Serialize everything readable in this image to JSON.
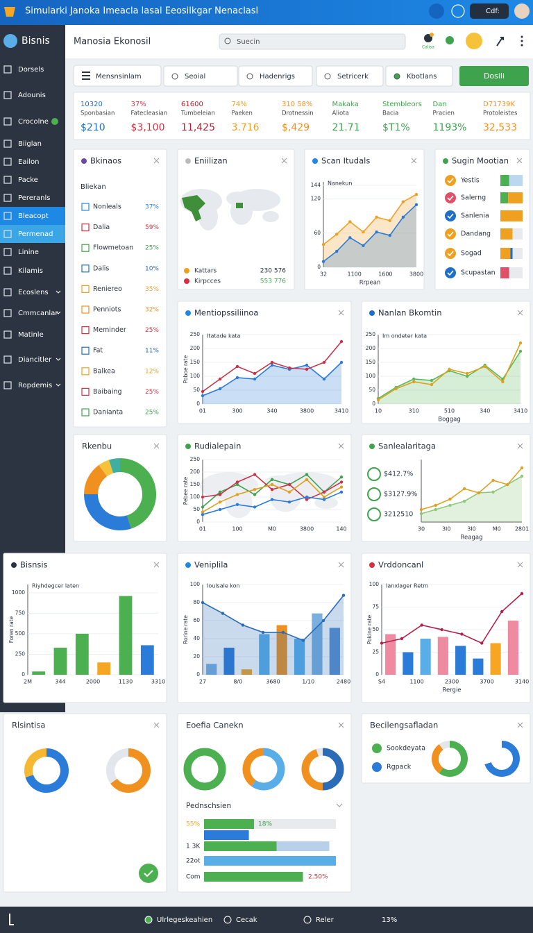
{
  "topbar": {
    "title": "Simularki Janoka Imeacla lasal Eeosilkgar Nenaclasl",
    "user": "Cdf:"
  },
  "sidebar": {
    "brand": "Bisnis",
    "items": [
      {
        "label": "Dorsels"
      },
      {
        "label": "Adounis"
      },
      {
        "label": "Crocolne",
        "badge": true
      },
      {
        "label": "Biiglan"
      },
      {
        "label": "Eailon"
      },
      {
        "label": "Packe"
      },
      {
        "label": "Pereranls"
      },
      {
        "label": "Bleacopt",
        "active": "#1e88e5"
      },
      {
        "label": "Permenad",
        "active": "#3aa6e6"
      },
      {
        "label": "Linine"
      },
      {
        "label": "Kilamis"
      },
      {
        "label": "Ecoslens",
        "expandable": true
      },
      {
        "label": "Cmmcanlar",
        "expandable": true
      },
      {
        "label": "Matinle"
      },
      {
        "label": "Diancitler",
        "expandable": true
      },
      {
        "label": "Ropdemis",
        "expandable": true
      }
    ]
  },
  "header": {
    "title": "Manosia Ekonosil",
    "search": "Suecin",
    "badge": "Calisa"
  },
  "toolbar": {
    "menu": "Mensnsinlam",
    "tabs": [
      "Seoial",
      "Hadenrigs",
      "Setricerk",
      "Kbotlans"
    ],
    "action": "Dosili"
  },
  "stats": [
    {
      "top": "10320",
      "label": "Sponbasian",
      "value": "$210",
      "color": "#1e6fc8"
    },
    {
      "top": "37%",
      "label": "Fatecleasian",
      "value": "$3,100",
      "color": "#d62f3f"
    },
    {
      "top": "61600",
      "label": "Tumbeleian",
      "value": "11,425",
      "color": "#b3202e"
    },
    {
      "top": "74%",
      "label": "Paeken",
      "value": "3.716",
      "color": "#f0a020"
    },
    {
      "top": "310 58%",
      "label": "Drotnessin",
      "value": "$,429",
      "color": "#f0901e"
    },
    {
      "top": "Makaka",
      "label": "Aliota",
      "value": "21.71",
      "color": "#3fa34d"
    },
    {
      "top": "Stembleors",
      "label": "Bacia",
      "value": "$T1%",
      "color": "#3fa34d"
    },
    {
      "top": "Dan",
      "label": "Pracien",
      "value": "1193%",
      "color": "#3fa34d"
    },
    {
      "top": "D71739K",
      "label": "Protoleistes",
      "value": "32,533",
      "color": "#f0901e"
    }
  ],
  "list_panel": {
    "title": "Bkinaos",
    "subtitle": "Bliekan",
    "items": [
      {
        "name": "Nonleals",
        "value": "37%",
        "color": "#1e88e5"
      },
      {
        "name": "Dalia",
        "value": "59%",
        "color": "#d62f3f"
      },
      {
        "name": "Flowmetoan",
        "value": "25%",
        "color": "#3fa34d"
      },
      {
        "name": "Dalis",
        "value": "10%",
        "color": "#1e6fc8"
      },
      {
        "name": "Reniereo",
        "value": "35%",
        "color": "#f0a020"
      },
      {
        "name": "Penniots",
        "value": "32%",
        "color": "#f0901e"
      },
      {
        "name": "Meminder",
        "value": "25%",
        "color": "#d62f3f"
      },
      {
        "name": "Fat",
        "value": "11%",
        "color": "#1e6fc8"
      },
      {
        "name": "Balkea",
        "value": "12%",
        "color": "#f0a020"
      },
      {
        "name": "Baibaing",
        "value": "25%",
        "color": "#d62f3f"
      },
      {
        "name": "Danianta",
        "value": "25%",
        "color": "#3fa34d"
      }
    ]
  },
  "map_panel": {
    "title": "Eniilizan",
    "legend": [
      {
        "name": "Kattars",
        "value": "230 576",
        "color": "#f0a020"
      },
      {
        "name": "Kirpcces",
        "value": "553 776",
        "color": "#d62f3f"
      }
    ]
  },
  "status_panel": {
    "title": "Sugin Mootian",
    "items": [
      {
        "name": "Yestis",
        "color": "#f0a020",
        "values": [
          40,
          60
        ],
        "colors": [
          "#4caf50",
          "#bcd8f0"
        ]
      },
      {
        "name": "Salerng",
        "color": "#e05068",
        "values": [
          35,
          65
        ],
        "colors": [
          "#4caf50",
          "#f0a020"
        ]
      },
      {
        "name": "Sanlenia",
        "color": "#1e6fc8",
        "values": [
          100
        ],
        "colors": [
          "#f0a020"
        ]
      },
      {
        "name": "Dandang",
        "color": "#f0a020",
        "values": [
          55,
          45
        ],
        "colors": [
          "#f0a020",
          "#e8eaed"
        ]
      },
      {
        "name": "Sogad",
        "color": "#f0a020",
        "values": [
          45,
          10,
          45
        ],
        "colors": [
          "#f0a020",
          "#1e6fc8",
          "#e8eaed"
        ]
      },
      {
        "name": "Scupastan",
        "color": "#1e6fc8",
        "values": [
          40,
          60
        ],
        "colors": [
          "#e05068",
          "#e8eaed"
        ]
      }
    ]
  },
  "charts": {
    "scan": {
      "type": "line",
      "title": "Scan Itudals",
      "accent": "#1e88e5",
      "subtitle": "Nanekun",
      "xlabel": "Rrpean",
      "xticks": [
        "32",
        "1100",
        "1600",
        "3800"
      ],
      "ylim": [
        0,
        150
      ],
      "yticks": [
        0,
        60,
        120,
        144
      ],
      "series": [
        {
          "color": "#f0a020",
          "area": true,
          "values": [
            40,
            58,
            80,
            62,
            88,
            82,
            115,
            128
          ]
        },
        {
          "color": "#d62f3f",
          "values": []
        },
        {
          "color": "#2b7bd8",
          "area": true,
          "values": [
            10,
            28,
            52,
            38,
            62,
            56,
            88,
            110
          ]
        }
      ]
    },
    "ment": {
      "type": "line",
      "title": "Mentiopssiliinoa",
      "accent": "#1e88e5",
      "subtitle": "Itatade kata",
      "ylabel": "Poboe rate",
      "xticks": [
        "01",
        "300",
        "340",
        "3800",
        "3410"
      ],
      "ylim": [
        0,
        250
      ],
      "yticks": [
        0,
        50,
        100,
        150,
        200,
        250
      ],
      "series": [
        {
          "color": "#2b7bd8",
          "area": true,
          "values": [
            30,
            55,
            95,
            90,
            140,
            125,
            140,
            90,
            150
          ]
        },
        {
          "color": "#c8334a",
          "values": [
            45,
            90,
            135,
            110,
            150,
            130,
            125,
            150,
            225
          ]
        }
      ]
    },
    "nanlan": {
      "type": "line",
      "title": "Nanlan Bkomtin",
      "accent": "#1e6fc8",
      "subtitle": "Im ondeter kata",
      "xlabel": "Boggag",
      "xticks": [
        "10",
        "310",
        "510",
        "340",
        "3410"
      ],
      "ylim": [
        0,
        250
      ],
      "yticks": [
        0,
        50,
        100,
        150,
        200,
        250
      ],
      "series": [
        {
          "color": "#5cb85c",
          "area": true,
          "values": [
            20,
            60,
            90,
            85,
            120,
            100,
            140,
            90,
            190
          ]
        },
        {
          "color": "#e0a020",
          "values": [
            15,
            55,
            80,
            70,
            125,
            110,
            135,
            80,
            220
          ]
        }
      ]
    },
    "rudi": {
      "type": "line",
      "title": "Rudialepain",
      "accent": "#3fa34d",
      "ylabel": "Pebee rate",
      "map_background": true,
      "xticks": [
        "01",
        "100",
        "M0",
        "3800",
        "140"
      ],
      "ylim": [
        0,
        250
      ],
      "yticks": [
        0,
        50,
        100,
        150,
        200,
        250
      ],
      "series": [
        {
          "color": "#3fa34d",
          "values": [
            60,
            120,
            150,
            110,
            170,
            150,
            190,
            120,
            180
          ]
        },
        {
          "color": "#c8334a",
          "values": [
            100,
            110,
            160,
            190,
            130,
            150,
            90,
            120,
            160
          ]
        },
        {
          "color": "#e0a020",
          "values": [
            40,
            80,
            110,
            130,
            150,
            120,
            170,
            100,
            140
          ]
        },
        {
          "color": "#2b7bd8",
          "values": [
            30,
            50,
            70,
            60,
            90,
            80,
            100,
            90,
            120
          ]
        }
      ]
    },
    "sanle": {
      "type": "line",
      "title": "Sanlealaritaga",
      "accent": "#3fa34d",
      "xlabel": "Reagag",
      "items": [
        {
          "label": "$412.7%"
        },
        {
          "label": "$3127.9%"
        },
        {
          "label": "3212510"
        }
      ],
      "xticks": [
        "30",
        "3I0",
        "3I0",
        "M0",
        "2801"
      ],
      "ylim": [
        0,
        150
      ],
      "yticks": [],
      "series": [
        {
          "color": "#8cc97a",
          "area": true,
          "values": [
            20,
            30,
            40,
            50,
            70,
            72,
            90,
            110
          ]
        },
        {
          "color": "#e0a020",
          "values": [
            30,
            40,
            55,
            80,
            70,
            100,
            90,
            130
          ]
        }
      ]
    },
    "bisn": {
      "type": "bar",
      "title": "Bisnsis",
      "accent": "#2a3340",
      "subtitle": "Riyhdegcer laten",
      "ylabel": "Foren rate",
      "xticks": [
        "2M",
        "344",
        "2000",
        "1130",
        "3310"
      ],
      "ylim": [
        0,
        1100
      ],
      "yticks": [
        0,
        250,
        500,
        750,
        1000
      ],
      "bars": {
        "values": [
          40,
          330,
          500,
          150,
          960,
          360
        ],
        "colors": [
          "#4caf50",
          "#4caf50",
          "#4caf50",
          "#f5a623",
          "#4caf50",
          "#2b7bd8"
        ]
      }
    },
    "veni": {
      "type": "bar",
      "title": "Veniplila",
      "accent": "#1e88e5",
      "subtitle": "Ioulsale kon",
      "ylabel": "Rorine rate",
      "xticks": [
        "27",
        "8/0",
        "3680",
        "1/10",
        "2480"
      ],
      "ylim": [
        0,
        100
      ],
      "yticks": [
        0,
        20,
        40,
        60,
        80,
        100
      ],
      "bars": {
        "values": [
          12,
          30,
          6,
          45,
          55,
          40,
          68,
          52
        ],
        "colors": [
          "#7ab0e0",
          "#2b7bd8",
          "#f5a623",
          "#5aaee8",
          "#f0901e",
          "#5aaee8",
          "#7ab0e0",
          "#5a8fd0"
        ]
      },
      "series": [
        {
          "color": "#2b6cb8",
          "area": true,
          "values": [
            80,
            68,
            55,
            47,
            47,
            38,
            60,
            88
          ]
        }
      ]
    },
    "vrdd": {
      "type": "bar",
      "title": "Vrddoncanl",
      "accent": "#d62f3f",
      "subtitle": "Ianxlager Retm",
      "ylabel": "Pokine rate",
      "xlabel": "Rergie",
      "xticks": [
        "S4",
        "1100",
        "2300",
        "3700",
        "3140"
      ],
      "ylim": [
        0,
        100
      ],
      "yticks": [
        0,
        25,
        50,
        75,
        100
      ],
      "bars": {
        "values": [
          45,
          25,
          40,
          42,
          32,
          18,
          35,
          60
        ],
        "colors": [
          "#f08aa0",
          "#2b7bd8",
          "#5aaee8",
          "#f08aa0",
          "#2b7bd8",
          "#2b7bd8",
          "#f5a623",
          "#f08aa0"
        ]
      },
      "series": [
        {
          "color": "#b3204a",
          "values": [
            35,
            40,
            55,
            50,
            45,
            35,
            70,
            90
          ]
        }
      ]
    },
    "rkenbu": {
      "type": "donut",
      "title": "Rkenbu",
      "donuts": [
        {
          "values": [
            45,
            30,
            15,
            5,
            5
          ],
          "colors": [
            "#4caf50",
            "#2b7bd8",
            "#f0901e",
            "#f5c23a",
            "#3fb0a0"
          ]
        }
      ]
    },
    "rlsi": {
      "type": "donut",
      "title": "Rlsintisa",
      "donuts": [
        {
          "values": [
            70,
            30
          ],
          "colors": [
            "#2b7bd8",
            "#f5b833"
          ]
        },
        {
          "values": [
            65,
            35
          ],
          "colors": [
            "#f0901e",
            "#e3e6ea"
          ]
        }
      ]
    },
    "eoef": {
      "type": "donut",
      "title": "Eoefia Canekn",
      "donuts": [
        {
          "values": [
            100
          ],
          "colors": [
            "#4caf50"
          ]
        },
        {
          "values": [
            60,
            40
          ],
          "colors": [
            "#5aaee8",
            "#f0901e"
          ]
        },
        {
          "values": [
            50,
            45,
            5
          ],
          "colors": [
            "#2b6cb8",
            "#f0901e",
            "#e3e6ea"
          ]
        }
      ],
      "progress": {
        "title": "Pednschsien",
        "rows": [
          {
            "label": "55%",
            "note": "18%",
            "values": [
              38,
              62
            ],
            "colors": [
              "#4caf50",
              "#e8eaed"
            ]
          },
          {
            "values": [
              34
            ],
            "colors": [
              "#2b7bd8"
            ]
          },
          {
            "label": "1 3K",
            "values": [
              55,
              40
            ],
            "colors": [
              "#4caf50",
              "#b8d0ea"
            ]
          },
          {
            "label": "22ot",
            "values": [
              100
            ],
            "colors": [
              "#5aaee8"
            ]
          },
          {
            "label": "Com",
            "note": "2.50%",
            "values": [
              75
            ],
            "colors": [
              "#4caf50"
            ]
          }
        ]
      }
    },
    "becil": {
      "type": "donut",
      "title": "Becilengsafladan",
      "legend": [
        {
          "name": "Sookdeyata",
          "color": "#4caf50"
        },
        {
          "name": "Rgpack",
          "color": "#2b7bd8"
        }
      ],
      "donuts": [
        {
          "values": [
            60,
            30,
            10
          ],
          "colors": [
            "#4caf50",
            "#f0901e",
            "#e3e6ea"
          ]
        },
        {
          "values": [
            70,
            30
          ],
          "colors": [
            "#2b7bd8",
            "#ffffff"
          ]
        }
      ]
    }
  },
  "footer": {
    "items": [
      "Ulrlegeskeahien",
      "Cecak",
      "Reler",
      "13%"
    ]
  }
}
